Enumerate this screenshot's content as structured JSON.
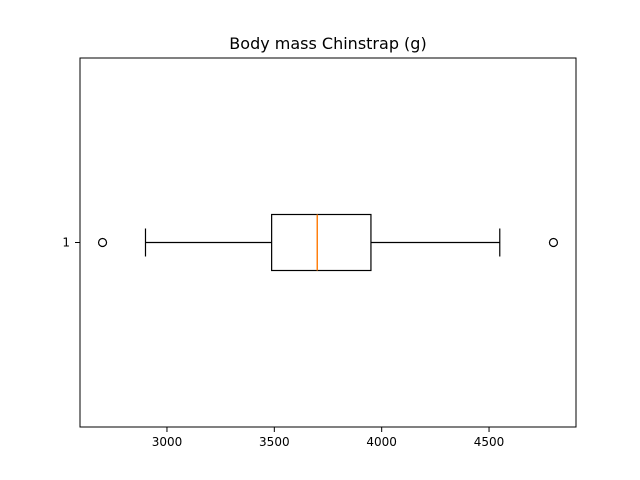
{
  "chart_data": {
    "type": "boxplot",
    "orientation": "horizontal",
    "title": "Body mass Chinstrap (g)",
    "xlabel": "",
    "ylabel": "",
    "xlim": [
      2595,
      4905
    ],
    "x_ticks": [
      3000,
      3500,
      4000,
      4500
    ],
    "y_ticks": [
      "1"
    ],
    "grid": false,
    "box": {
      "label": "1",
      "whisker_low": 2900,
      "q1": 3487.5,
      "median": 3700,
      "q3": 3950,
      "whisker_high": 4550,
      "outliers": [
        2700,
        4800
      ]
    },
    "colors": {
      "box": "#000000",
      "median": "#ff7f0e",
      "whisker": "#000000",
      "outlier": "#000000"
    }
  }
}
